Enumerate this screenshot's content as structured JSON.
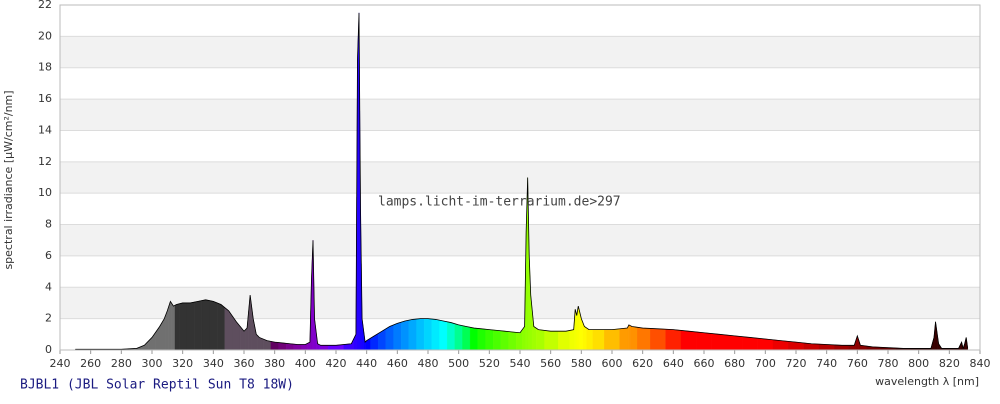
{
  "chart_data": {
    "type": "spectrum",
    "title": "BJBL1 (JBL Solar Reptil Sun T8 18W)",
    "annotation": "lamps.licht-im-terrarium.de>297",
    "x_label": "wavelength λ [nm]",
    "y_label": "spectral irradiance [µW/cm²/nm]",
    "xlim": [
      240,
      840
    ],
    "ylim": [
      0,
      22
    ],
    "xticks": [
      240,
      260,
      280,
      300,
      320,
      340,
      360,
      380,
      400,
      420,
      440,
      460,
      480,
      500,
      520,
      540,
      560,
      580,
      600,
      620,
      640,
      660,
      680,
      700,
      720,
      740,
      760,
      780,
      800,
      820,
      840
    ],
    "yticks": [
      0,
      2,
      4,
      6,
      8,
      10,
      12,
      14,
      16,
      18,
      20,
      22
    ],
    "grid": true,
    "line_color": "#000000",
    "x": [
      250,
      260,
      270,
      280,
      290,
      295,
      300,
      305,
      308,
      310,
      312,
      314,
      316,
      320,
      325,
      330,
      335,
      340,
      345,
      350,
      355,
      360,
      362,
      364,
      366,
      368,
      370,
      375,
      380,
      385,
      390,
      395,
      400,
      403,
      404,
      405,
      406,
      408,
      410,
      420,
      430,
      433,
      434,
      435,
      436,
      437,
      439,
      440,
      445,
      450,
      455,
      460,
      465,
      470,
      475,
      480,
      485,
      490,
      495,
      500,
      505,
      510,
      515,
      520,
      525,
      530,
      535,
      540,
      543,
      544,
      545,
      546,
      547,
      549,
      552,
      560,
      570,
      575,
      576,
      577,
      578,
      580,
      582,
      585,
      590,
      600,
      610,
      611,
      613,
      620,
      630,
      640,
      650,
      660,
      670,
      680,
      690,
      700,
      710,
      720,
      730,
      740,
      750,
      758,
      760,
      762,
      770,
      780,
      790,
      800,
      808,
      810,
      811,
      813,
      815,
      820,
      826,
      828,
      829,
      830,
      831,
      832
    ],
    "values": [
      0.05,
      0.05,
      0.05,
      0.05,
      0.1,
      0.3,
      0.8,
      1.5,
      2.0,
      2.5,
      3.1,
      2.8,
      2.9,
      3.0,
      3.0,
      3.1,
      3.2,
      3.1,
      2.9,
      2.5,
      1.8,
      1.2,
      1.4,
      3.5,
      2.0,
      1.0,
      0.8,
      0.6,
      0.5,
      0.45,
      0.4,
      0.35,
      0.35,
      0.5,
      4.5,
      7.0,
      2.0,
      0.4,
      0.3,
      0.3,
      0.4,
      1.0,
      18.5,
      21.5,
      9.0,
      2.0,
      0.5,
      0.6,
      0.9,
      1.2,
      1.5,
      1.7,
      1.85,
      1.95,
      2.0,
      2.0,
      1.95,
      1.85,
      1.75,
      1.6,
      1.5,
      1.4,
      1.35,
      1.3,
      1.25,
      1.2,
      1.15,
      1.1,
      1.5,
      7.5,
      11.0,
      6.0,
      3.5,
      1.5,
      1.3,
      1.2,
      1.2,
      1.3,
      2.6,
      2.2,
      2.8,
      2.0,
      1.5,
      1.3,
      1.3,
      1.3,
      1.4,
      1.6,
      1.5,
      1.4,
      1.35,
      1.3,
      1.2,
      1.1,
      1.0,
      0.9,
      0.8,
      0.7,
      0.6,
      0.5,
      0.4,
      0.35,
      0.3,
      0.3,
      0.9,
      0.3,
      0.2,
      0.15,
      0.1,
      0.1,
      0.1,
      0.8,
      1.8,
      0.4,
      0.1,
      0.1,
      0.1,
      0.5,
      0.1,
      0.4,
      0.8,
      0.1
    ]
  }
}
